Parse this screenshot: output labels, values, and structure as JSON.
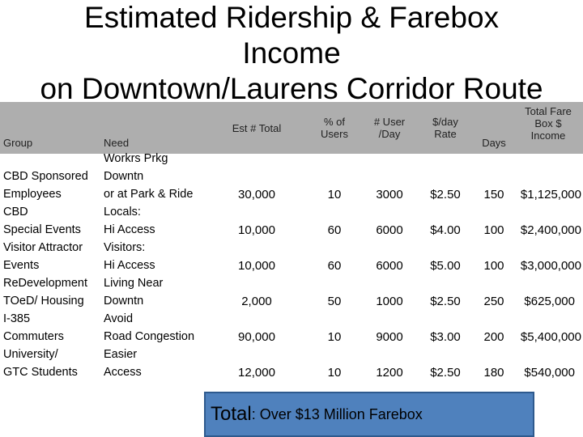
{
  "title": {
    "line1": "Estimated Ridership & Farebox",
    "line2": "Income",
    "line3": "on Downtown/Laurens Corridor Route"
  },
  "headers": {
    "group": "Group",
    "need": "Need",
    "est_total": "Est # Total",
    "pct_users": "% of Users",
    "user_day": "# User /Day",
    "rate": "$/day Rate",
    "days": "Days",
    "income": "Total Fare Box $ Income"
  },
  "group_lines": [
    "CBD Sponsored",
    "Employees",
    "CBD",
    "Special Events",
    "Visitor Attractor",
    "Events",
    "ReDevelopment",
    "TOeD/ Housing",
    "I-385",
    "Commuters",
    "University/",
    "GTC Students"
  ],
  "need_lines": [
    "Workrs Prkg",
    "Downtn",
    "or at Park & Ride",
    "Locals:",
    "Hi Access",
    "Visitors:",
    "Hi Access",
    "Living Near",
    "Downtn",
    "Avoid",
    "Road Congestion",
    "Easier",
    "Access"
  ],
  "rows": [
    {
      "est_total": "30,000",
      "pct": "10",
      "users_day": "3000",
      "rate": "$2.50",
      "days": "150",
      "income": "$1,125,000"
    },
    {
      "est_total": "10,000",
      "pct": "60",
      "users_day": "6000",
      "rate": "$4.00",
      "days": "100",
      "income": "$2,400,000"
    },
    {
      "est_total": "10,000",
      "pct": "60",
      "users_day": "6000",
      "rate": "$5.00",
      "days": "100",
      "income": "$3,000,000"
    },
    {
      "est_total": "2,000",
      "pct": "50",
      "users_day": "1000",
      "rate": "$2.50",
      "days": "250",
      "income": "$625,000"
    },
    {
      "est_total": "90,000",
      "pct": "10",
      "users_day": "9000",
      "rate": "$3.00",
      "days": "200",
      "income": "$5,400,000"
    },
    {
      "est_total": "12,000",
      "pct": "10",
      "users_day": "1200",
      "rate": "$2.50",
      "days": "180",
      "income": "$540,000"
    }
  ],
  "total": {
    "label": "Total",
    "text": ": Over $13 Million Farebox"
  },
  "colors": {
    "header_bg": "#aeaeae",
    "total_box": "#4f81bd"
  }
}
